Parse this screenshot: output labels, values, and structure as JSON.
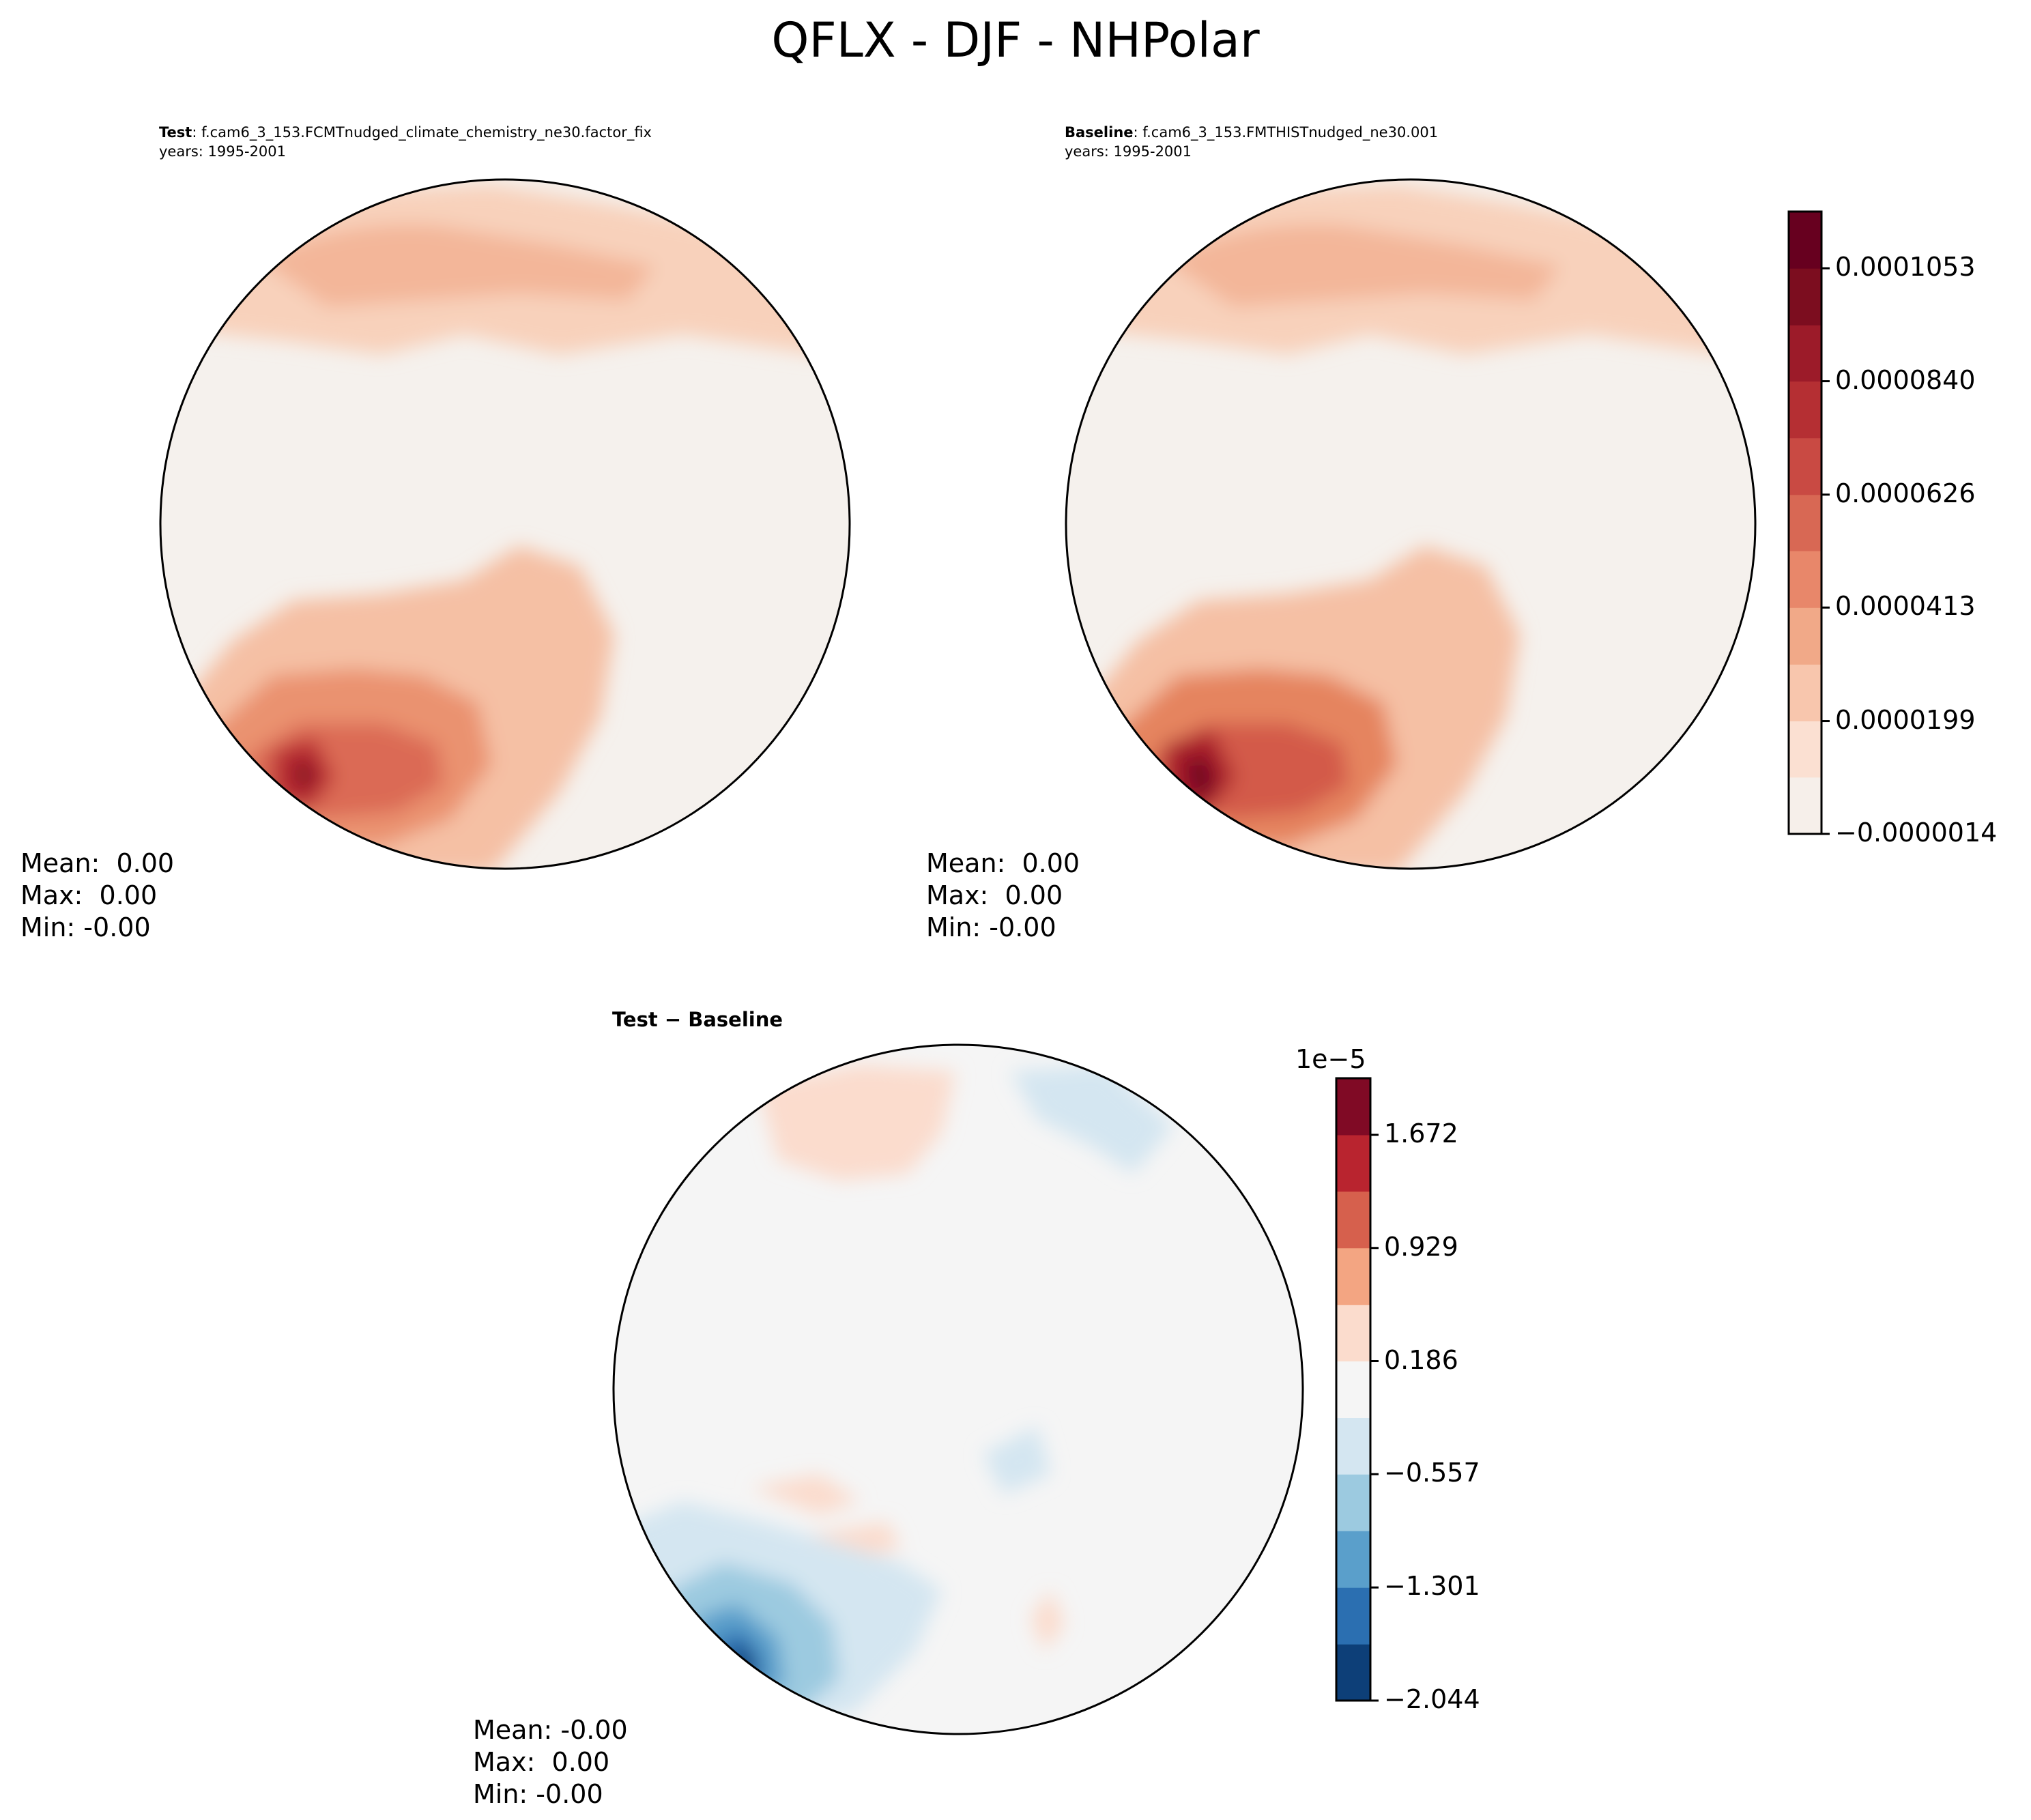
{
  "figure_title": "QFLX - DJF - NHPolar",
  "colors": {
    "land_outline": "#000000",
    "ocean_background": "#f5f2ef",
    "diff_background": "#f5f5f5"
  },
  "panels": [
    {
      "id": "test",
      "title_label": "Test",
      "title_case": ": f.cam6_3_153.FCMTnudged_climate_chemistry_ne30.factor_fix",
      "years": "years: 1995-2001",
      "stats": {
        "mean": "Mean:  0.00",
        "max": "Max:  0.00",
        "min": "Min: -0.00"
      }
    },
    {
      "id": "baseline",
      "title_label": "Baseline",
      "title_case": ": f.cam6_3_153.FMTHISTnudged_ne30.001",
      "years": "years: 1995-2001",
      "stats": {
        "mean": "Mean:  0.00",
        "max": "Max:  0.00",
        "min": "Min: -0.00"
      }
    },
    {
      "id": "diff",
      "title": "Test − Baseline",
      "stats": {
        "mean": "Mean: -0.00",
        "max": "Max:  0.00",
        "min": "Min: -0.00"
      }
    }
  ],
  "chart_data": [
    {
      "type": "heatmap",
      "name": "QFLX test and baseline field colorbar",
      "colormap": "Reds",
      "levels": [
        -1.4e-06,
        9.3e-06,
        1.99e-05,
        3.06e-05,
        4.13e-05,
        5.2e-05,
        6.26e-05,
        7.33e-05,
        8.4e-05,
        9.46e-05,
        0.0001053,
        0.000116
      ],
      "tick_labels": [
        "−0.0000014",
        "0.0000199",
        "0.0000413",
        "0.0000626",
        "0.0000840",
        "0.0001053"
      ],
      "colors": [
        "#f6efea",
        "#fbe0d2",
        "#f8c6ad",
        "#f1a988",
        "#e8876a",
        "#d86854",
        "#c94a43",
        "#b52f33",
        "#9c1b29",
        "#7c0d1f",
        "#67001f"
      ]
    },
    {
      "type": "heatmap",
      "name": "QFLX test minus baseline colorbar",
      "colormap": "RdBu_r",
      "offset_label": "1e−5",
      "levels": [
        -2.044,
        -1.673,
        -1.301,
        -0.929,
        -0.557,
        -0.186,
        0.186,
        0.557,
        0.929,
        1.301,
        1.672,
        2.044
      ],
      "tick_labels": [
        "−2.044",
        "−1.301",
        "−0.557",
        "0.186",
        "0.929",
        "1.672"
      ],
      "colors": [
        "#0d3f78",
        "#2b6fb1",
        "#5a9fcb",
        "#9ccae0",
        "#d4e6f1",
        "#f5f5f5",
        "#fbdccd",
        "#f3a582",
        "#d6604d",
        "#b9242f",
        "#800a25"
      ]
    }
  ]
}
